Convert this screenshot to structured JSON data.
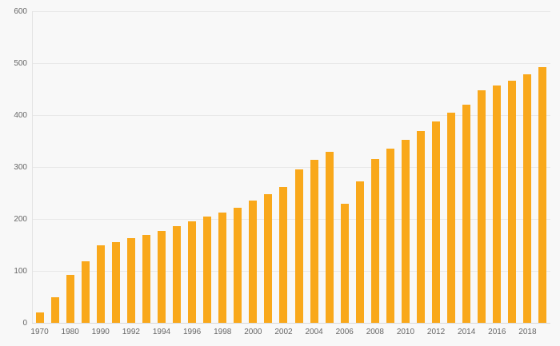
{
  "chart_data": {
    "type": "bar",
    "title": "",
    "xlabel": "",
    "ylabel": "",
    "categories": [
      "1970",
      "1975",
      "1980",
      "1985",
      "1990",
      "1991",
      "1992",
      "1993",
      "1994",
      "1995",
      "1996",
      "1997",
      "1998",
      "1999",
      "2000",
      "2001",
      "2002",
      "2003",
      "2004",
      "2005",
      "2006",
      "2007",
      "2008",
      "2009",
      "2010",
      "2011",
      "2012",
      "2013",
      "2014",
      "2015",
      "2016",
      "2017",
      "2018",
      "2019"
    ],
    "values": [
      20,
      50,
      92,
      118,
      149,
      156,
      163,
      169,
      177,
      186,
      195,
      204,
      213,
      222,
      235,
      248,
      262,
      295,
      314,
      330,
      230,
      273,
      315,
      336,
      352,
      369,
      387,
      404,
      420,
      447,
      457,
      466,
      479,
      493
    ],
    "ylim": [
      0,
      600
    ],
    "y_ticks": [
      0,
      100,
      200,
      300,
      400,
      500,
      600
    ],
    "x_tick_labels": [
      "1970",
      "1980",
      "1990",
      "1992",
      "1994",
      "1996",
      "1998",
      "2000",
      "2002",
      "2004",
      "2006",
      "2008",
      "2010",
      "2012",
      "2014",
      "2016",
      "2018"
    ],
    "grid": "horizontal",
    "legend": "none",
    "colors": {
      "bar": "#f9a81b",
      "background": "#f8f8f8",
      "gridline": "#e8e8e8",
      "baseline": "#d9d9d9",
      "axis_line": "#e3e3e3",
      "tick_text": "#666666"
    }
  }
}
